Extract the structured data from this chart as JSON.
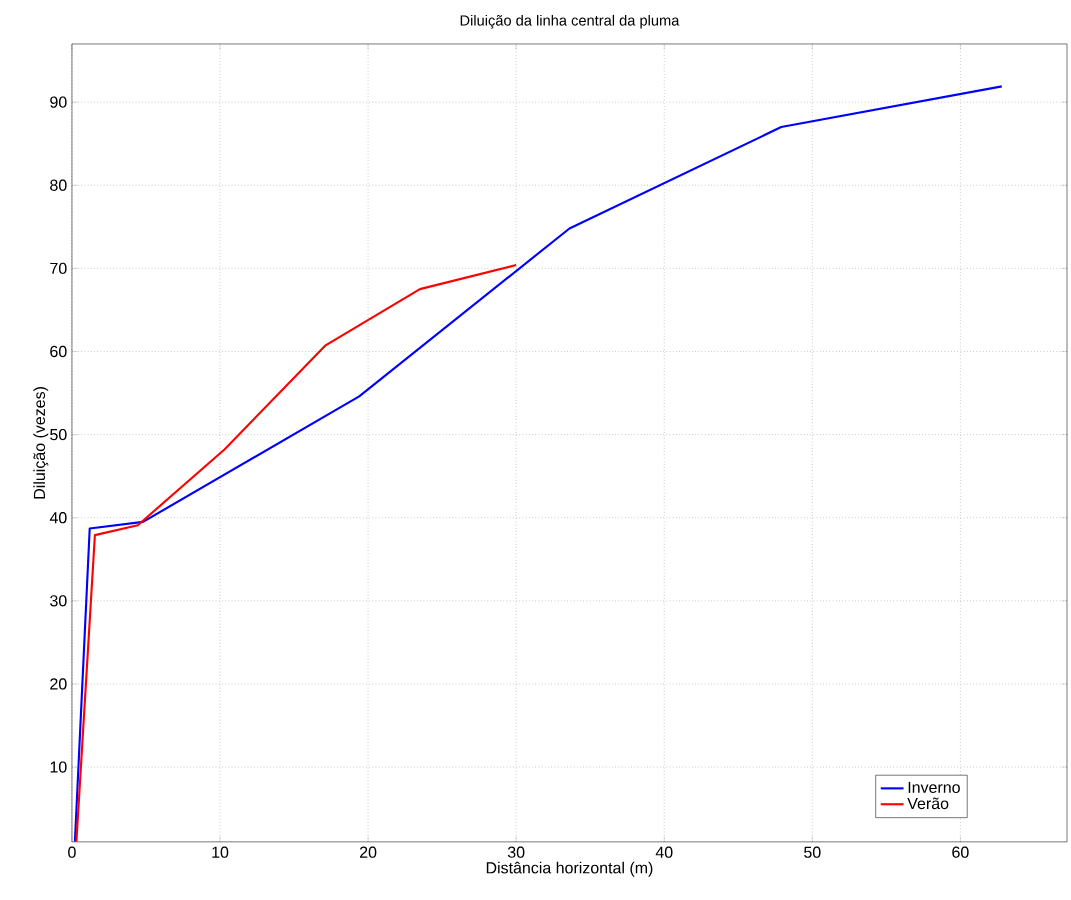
{
  "chart_data": {
    "type": "line",
    "title": "Diluição da linha central da pluma",
    "xlabel": "Distância horizontal (m)",
    "ylabel": "Diluição (vezes)",
    "xlim": [
      0,
      67.2
    ],
    "ylim": [
      1,
      97
    ],
    "xticks": [
      0,
      10,
      20,
      30,
      40,
      50,
      60
    ],
    "yticks": [
      10,
      20,
      30,
      40,
      50,
      60,
      70,
      80,
      90
    ],
    "grid": true,
    "legend": "bottom right",
    "line_style": "solid",
    "series": [
      {
        "name": "Inverno",
        "color": "#0000ff",
        "x": [
          0.2,
          1.2,
          4.8,
          19.4,
          33.6,
          47.9,
          62.8
        ],
        "values": [
          1,
          38.7,
          39.5,
          54.6,
          74.8,
          87.0,
          91.9
        ]
      },
      {
        "name": "Verão",
        "color": "#ff0000",
        "x": [
          0.3,
          1.55,
          4.45,
          10.3,
          17.1,
          23.5,
          30.0
        ],
        "values": [
          1,
          37.9,
          39.1,
          48.2,
          60.7,
          67.5,
          70.4
        ]
      }
    ]
  }
}
